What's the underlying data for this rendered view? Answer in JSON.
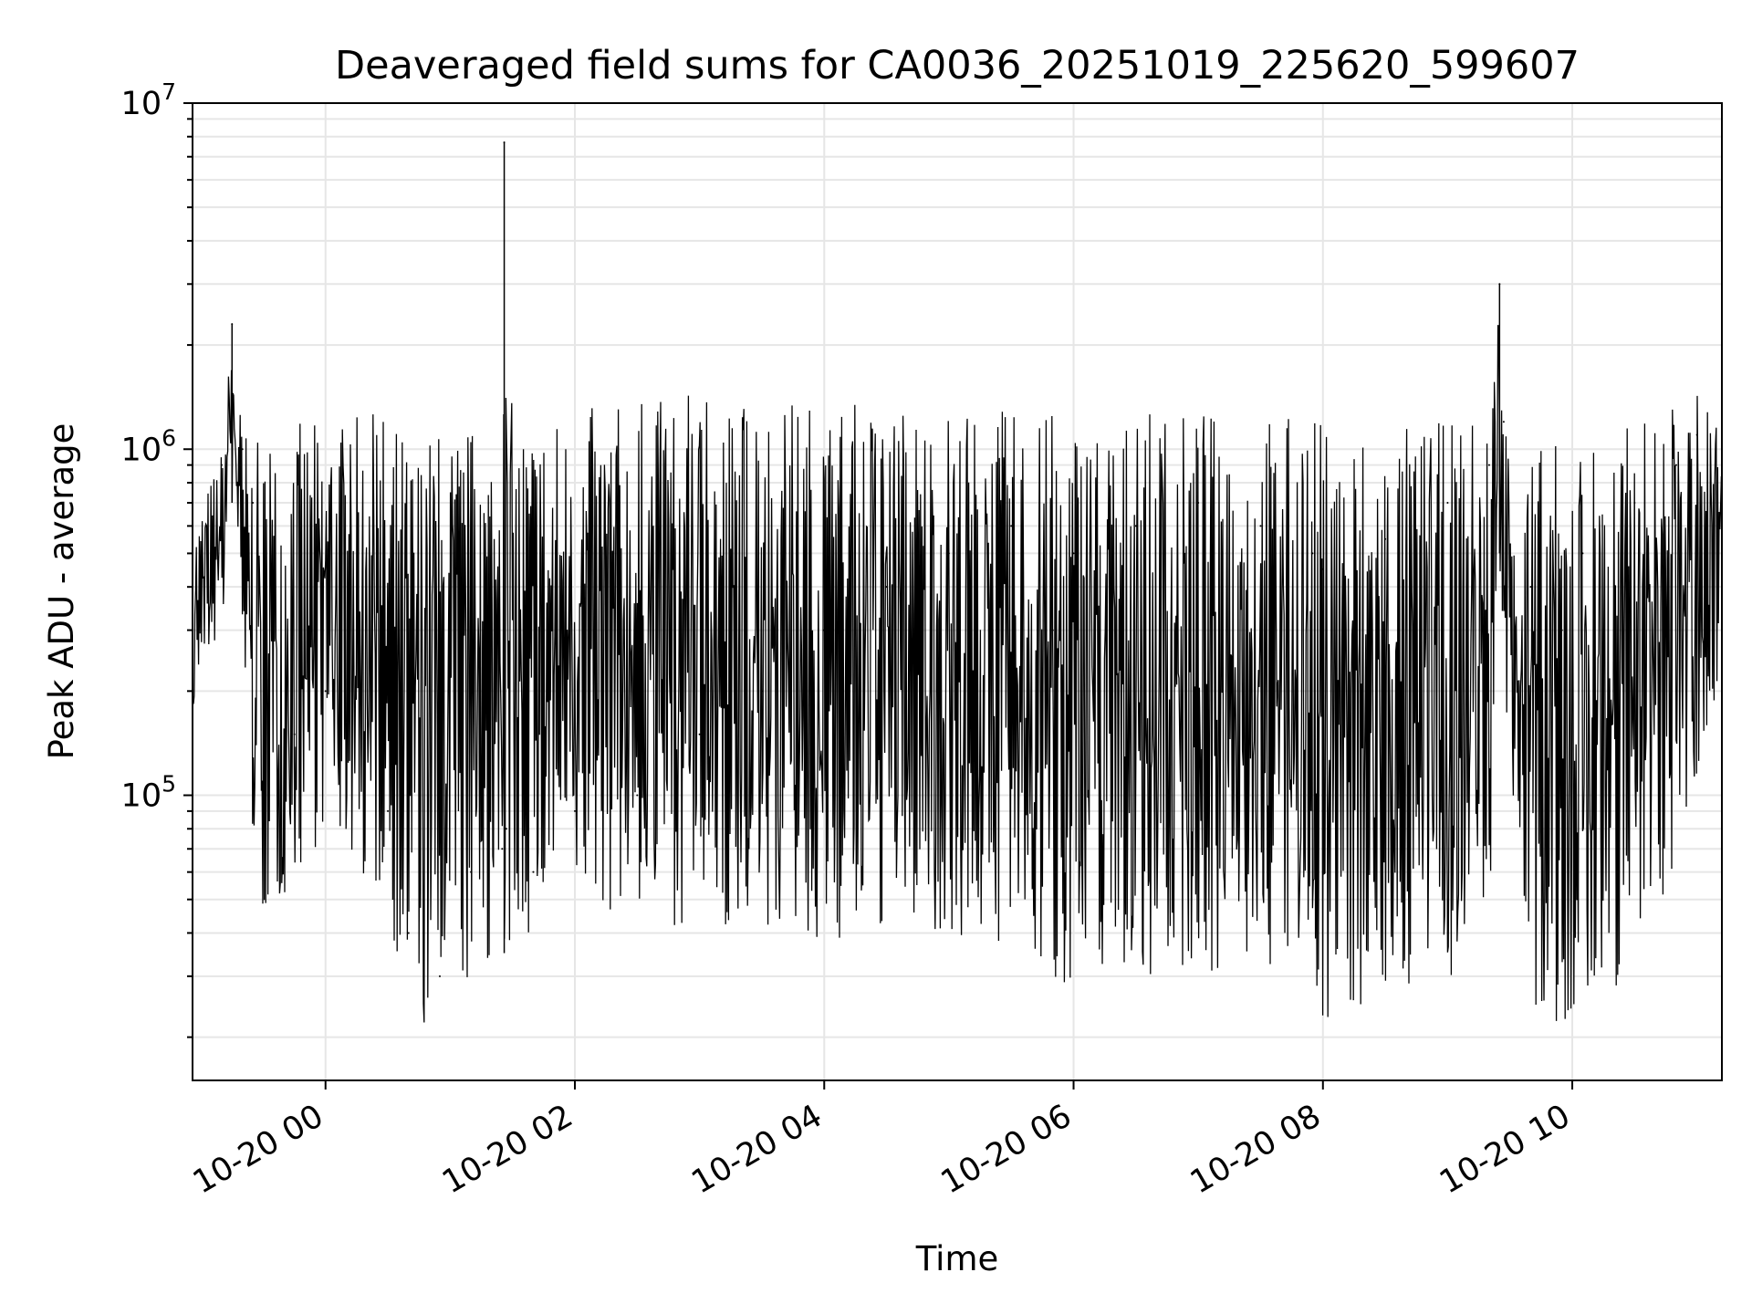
{
  "chart_data": {
    "type": "line",
    "title": "Deaveraged field sums for CA0036_20251019_225620_599607",
    "xlabel": "Time",
    "ylabel": "Peak ADU - average",
    "yscale": "log",
    "ylim": [
      15000,
      10000000
    ],
    "xlim": [
      "2025-10-19 22:56",
      "2025-10-20 11:12"
    ],
    "grid": true,
    "line_color": "#000000",
    "x_ticks": [
      {
        "value": "2025-10-20 00:00",
        "label": "10-20 00"
      },
      {
        "value": "2025-10-20 02:00",
        "label": "10-20 02"
      },
      {
        "value": "2025-10-20 04:00",
        "label": "10-20 04"
      },
      {
        "value": "2025-10-20 06:00",
        "label": "10-20 06"
      },
      {
        "value": "2025-10-20 08:00",
        "label": "10-20 08"
      },
      {
        "value": "2025-10-20 10:00",
        "label": "10-20 10"
      }
    ],
    "y_ticks": [
      {
        "value": 100000,
        "base": "10",
        "exp": "5"
      },
      {
        "value": 1000000,
        "base": "10",
        "exp": "6"
      },
      {
        "value": 10000000,
        "base": "10",
        "exp": "7"
      }
    ],
    "series": [
      {
        "x": [
          "2025-10-19 22:56",
          "2025-10-19 23:10",
          "2025-10-19 23:15",
          "2025-10-19 23:20",
          "2025-10-19 23:25",
          "2025-10-19 23:30",
          "2025-10-19 23:45",
          "2025-10-20 00:00",
          "2025-10-20 00:30",
          "2025-10-20 00:40",
          "2025-10-20 00:55",
          "2025-10-20 01:10",
          "2025-10-20 01:25",
          "2025-10-20 01:26",
          "2025-10-20 01:27",
          "2025-10-20 01:40",
          "2025-10-20 02:00",
          "2025-10-20 02:30",
          "2025-10-20 03:00",
          "2025-10-20 03:30",
          "2025-10-20 04:00",
          "2025-10-20 04:30",
          "2025-10-20 05:00",
          "2025-10-20 05:30",
          "2025-10-20 05:50",
          "2025-10-20 06:00",
          "2025-10-20 06:30",
          "2025-10-20 07:00",
          "2025-10-20 07:30",
          "2025-10-20 07:55",
          "2025-10-20 08:00",
          "2025-10-20 08:30",
          "2025-10-20 09:00",
          "2025-10-20 09:20",
          "2025-10-20 09:25",
          "2025-10-20 09:27",
          "2025-10-20 09:40",
          "2025-10-20 09:55",
          "2025-10-20 10:05",
          "2025-10-20 10:30",
          "2025-10-20 10:50",
          "2025-10-20 11:00",
          "2025-10-20 11:12"
        ],
        "y": [
          400000,
          900000,
          2300000,
          1000000,
          700000,
          80000,
          150000,
          200000,
          90000,
          40000,
          30000,
          60000,
          70000,
          7700000,
          80000,
          60000,
          90000,
          100000,
          150000,
          200000,
          300000,
          400000,
          500000,
          600000,
          300000,
          500000,
          600000,
          700000,
          600000,
          500000,
          450000,
          550000,
          700000,
          900000,
          3000000,
          1200000,
          400000,
          300000,
          500000,
          700000,
          900000,
          1100000,
          300000
        ],
        "upper_envelope": [
          600000,
          1000000,
          2300000,
          1200000,
          1100000,
          1000000,
          1200000,
          1200000,
          1300000,
          1100000,
          1200000,
          1200000,
          1300000,
          7700000,
          1400000,
          1300000,
          1300000,
          1400000,
          1450000,
          1450000,
          1400000,
          1400000,
          1350000,
          1300000,
          1300000,
          1300000,
          1250000,
          1300000,
          1300000,
          1250000,
          1250000,
          1200000,
          1200000,
          1300000,
          3000000,
          1300000,
          1050000,
          1050000,
          1100000,
          1200000,
          1400000,
          1500000,
          1400000
        ],
        "lower_envelope": [
          180000,
          300000,
          700000,
          200000,
          60000,
          40000,
          55000,
          80000,
          45000,
          22000,
          19000,
          28000,
          35000,
          35000,
          30000,
          40000,
          45000,
          45000,
          40000,
          40000,
          35000,
          40000,
          40000,
          35000,
          25000,
          30000,
          30000,
          30000,
          30000,
          28000,
          22000,
          25000,
          28000,
          45000,
          500000,
          200000,
          20000,
          18000,
          22000,
          30000,
          60000,
          90000,
          250000
        ]
      }
    ]
  }
}
